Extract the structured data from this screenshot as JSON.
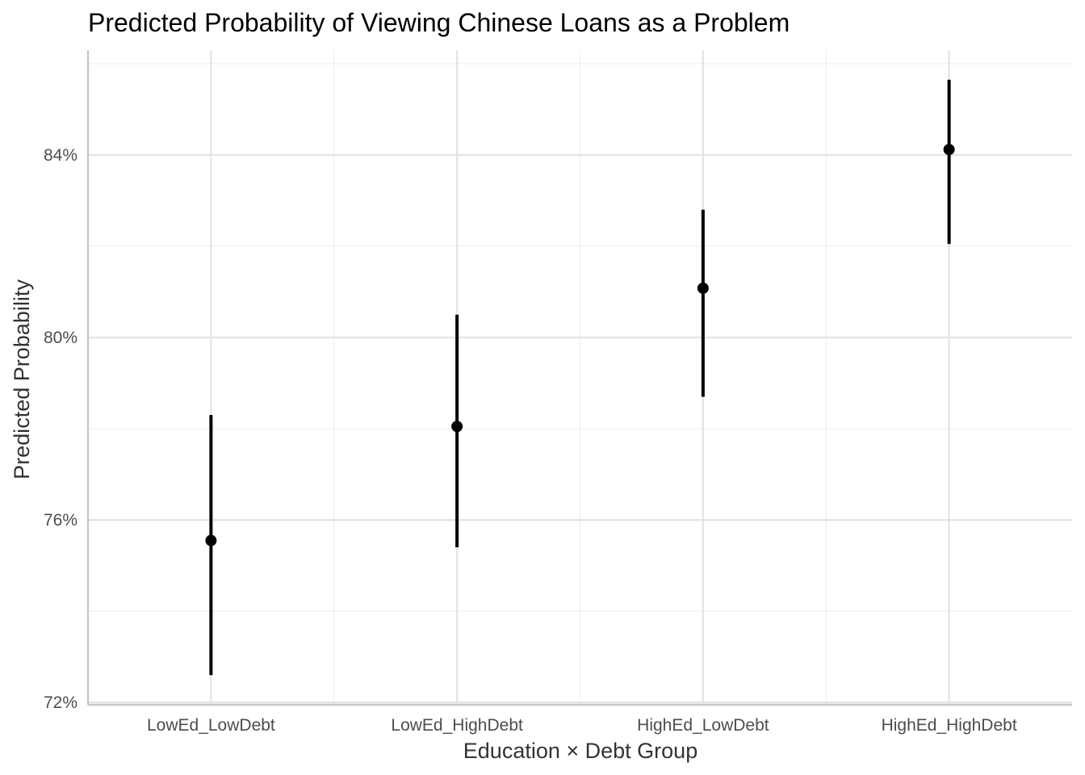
{
  "chart_data": {
    "type": "pointrange",
    "title": "Predicted Probability of Viewing Chinese Loans as a Problem",
    "xlabel": "Education × Debt Group",
    "ylabel": "Predicted Probability",
    "categories": [
      "LowEd_LowDebt",
      "LowEd_HighDebt",
      "HighEd_LowDebt",
      "HighEd_HighDebt"
    ],
    "values": [
      0.7555,
      0.7805,
      0.8108,
      0.8412
    ],
    "lower": [
      0.726,
      0.754,
      0.787,
      0.8205
    ],
    "upper": [
      0.783,
      0.805,
      0.828,
      0.8565
    ],
    "ylim": [
      0.7195,
      0.863
    ],
    "y_ticks": [
      0.72,
      0.76,
      0.8,
      0.84
    ],
    "y_tick_labels": [
      "72%",
      "76%",
      "80%",
      "84%"
    ],
    "grid": true,
    "color": "#000000"
  }
}
